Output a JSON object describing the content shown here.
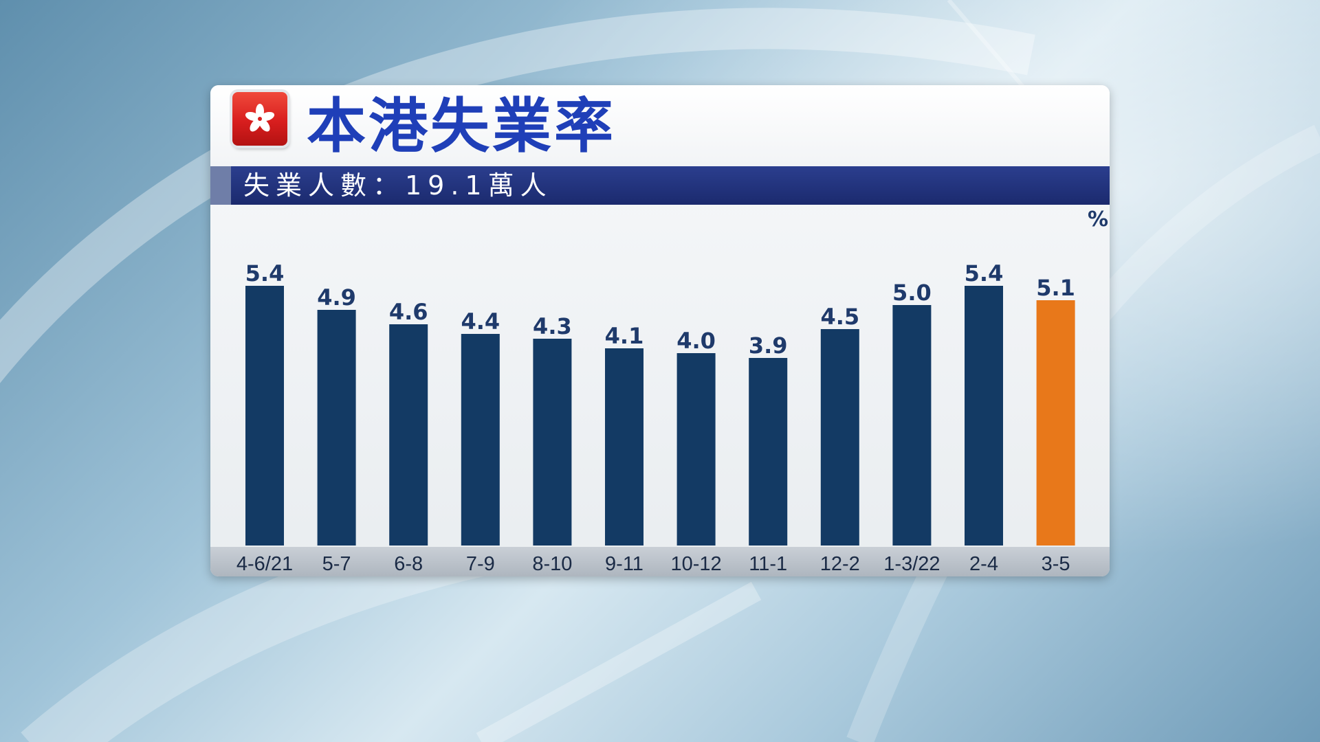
{
  "header": {
    "title": "本港失業率",
    "subtitle": "失業人數：19.1萬人",
    "unit_label": "%"
  },
  "colors": {
    "bar": "#133a64",
    "highlight_bar": "#e8781a",
    "value_label": "#1f3a6b"
  },
  "icons": {
    "flag": "hong-kong-flag-icon"
  },
  "chart_data": {
    "type": "bar",
    "title": "本港失業率",
    "subtitle": "失業人數：19.1萬人",
    "ylabel": "%",
    "xlabel": "",
    "categories": [
      "4-6/21",
      "5-7",
      "6-8",
      "7-9",
      "8-10",
      "9-11",
      "10-12",
      "11-1",
      "12-2",
      "1-3/22",
      "2-4",
      "3-5"
    ],
    "values": [
      5.4,
      4.9,
      4.6,
      4.4,
      4.3,
      4.1,
      4.0,
      3.9,
      4.5,
      5.0,
      5.4,
      5.1
    ],
    "value_labels": [
      "5.4",
      "4.9",
      "4.6",
      "4.4",
      "4.3",
      "4.1",
      "4.0",
      "3.9",
      "4.5",
      "5.0",
      "5.4",
      "5.1"
    ],
    "highlight_index": 11,
    "grid": false,
    "legend": "none"
  }
}
